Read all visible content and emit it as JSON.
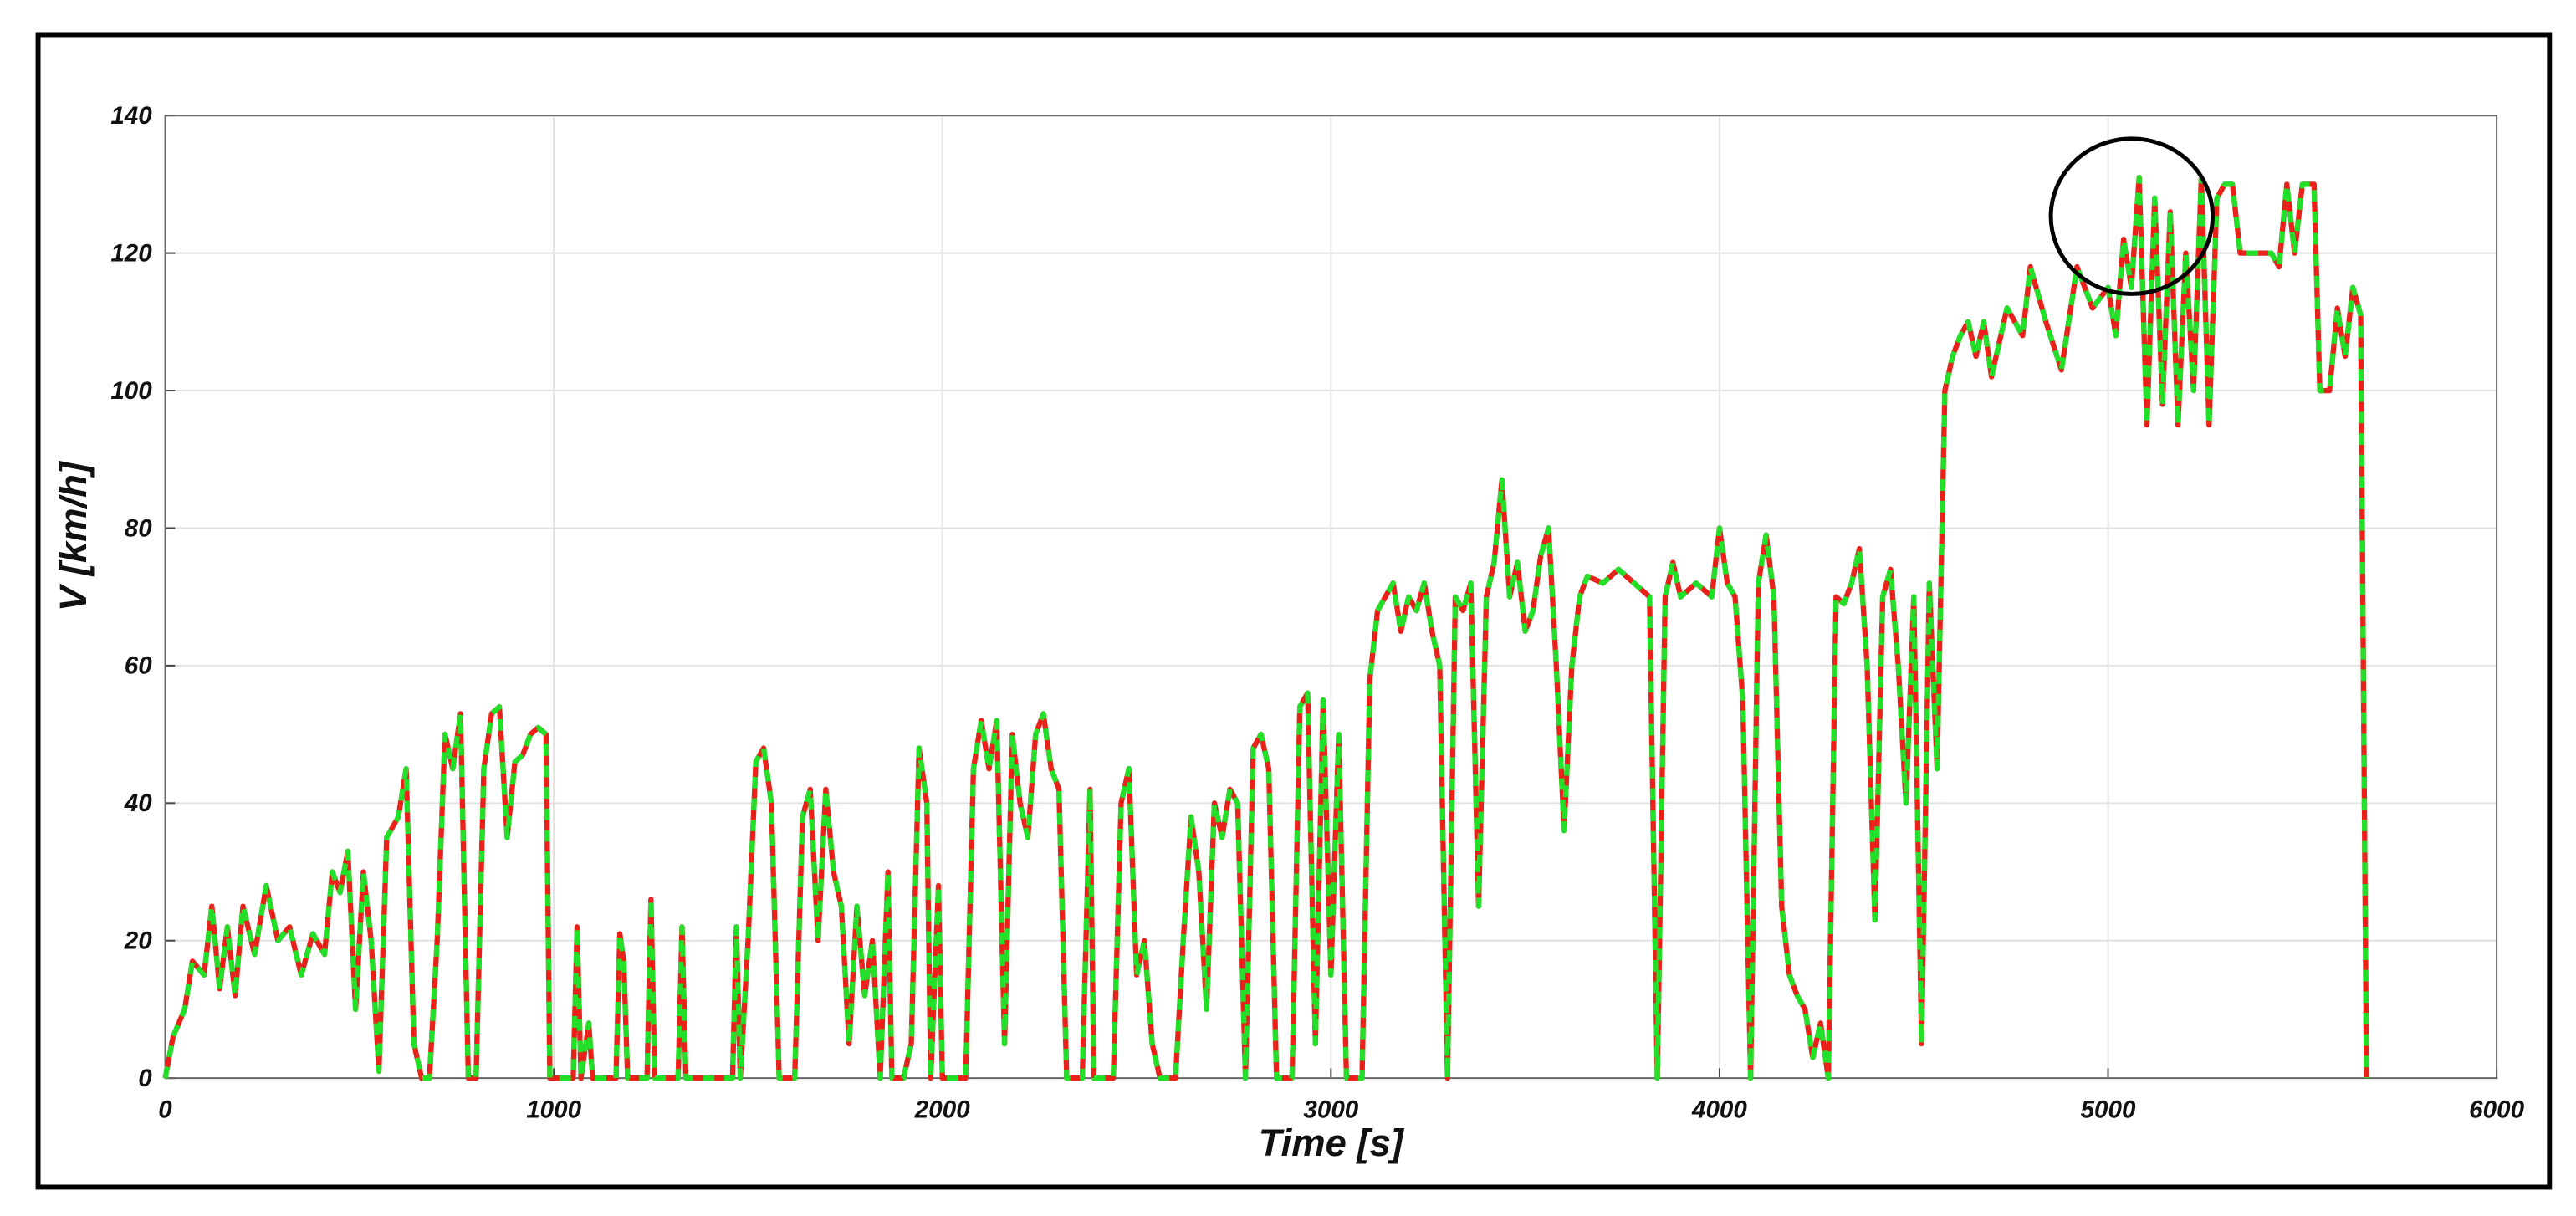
{
  "chart_data": {
    "type": "line",
    "xlabel": "Time [s]",
    "ylabel": "V [km/h]",
    "xlim": [
      0,
      6000
    ],
    "xticks": [
      0,
      1000,
      2000,
      3000,
      4000,
      5000,
      6000
    ],
    "ylim": [
      0,
      140
    ],
    "yticks": [
      0,
      20,
      40,
      60,
      80,
      100,
      120,
      140
    ],
    "grid": true,
    "x": [
      0,
      20,
      50,
      70,
      100,
      120,
      140,
      160,
      180,
      200,
      230,
      260,
      290,
      320,
      350,
      380,
      410,
      430,
      450,
      470,
      490,
      510,
      530,
      550,
      570,
      600,
      620,
      640,
      660,
      680,
      700,
      720,
      740,
      760,
      780,
      800,
      820,
      840,
      860,
      880,
      900,
      920,
      940,
      960,
      980,
      990,
      1050,
      1060,
      1070,
      1090,
      1100,
      1160,
      1170,
      1180,
      1190,
      1240,
      1250,
      1260,
      1320,
      1330,
      1340,
      1460,
      1470,
      1480,
      1500,
      1520,
      1540,
      1560,
      1580,
      1620,
      1640,
      1660,
      1680,
      1700,
      1720,
      1740,
      1760,
      1780,
      1800,
      1820,
      1840,
      1860,
      1870,
      1900,
      1920,
      1940,
      1960,
      1970,
      1990,
      2000,
      2060,
      2080,
      2100,
      2120,
      2140,
      2160,
      2180,
      2200,
      2220,
      2240,
      2260,
      2280,
      2300,
      2320,
      2360,
      2380,
      2390,
      2440,
      2460,
      2480,
      2500,
      2520,
      2540,
      2560,
      2600,
      2620,
      2640,
      2660,
      2680,
      2700,
      2720,
      2740,
      2760,
      2780,
      2800,
      2820,
      2840,
      2860,
      2900,
      2920,
      2940,
      2960,
      2980,
      3000,
      3020,
      3040,
      3080,
      3100,
      3120,
      3140,
      3160,
      3180,
      3200,
      3220,
      3240,
      3260,
      3280,
      3300,
      3320,
      3340,
      3360,
      3380,
      3400,
      3420,
      3440,
      3460,
      3480,
      3500,
      3520,
      3540,
      3560,
      3580,
      3600,
      3620,
      3640,
      3660,
      3700,
      3740,
      3780,
      3820,
      3840,
      3860,
      3880,
      3900,
      3940,
      3980,
      4000,
      4020,
      4040,
      4060,
      4080,
      4100,
      4120,
      4140,
      4160,
      4180,
      4200,
      4220,
      4240,
      4260,
      4280,
      4300,
      4320,
      4340,
      4360,
      4380,
      4400,
      4420,
      4440,
      4460,
      4480,
      4500,
      4520,
      4540,
      4560,
      4580,
      4600,
      4620,
      4640,
      4660,
      4680,
      4700,
      4740,
      4780,
      4800,
      4840,
      4880,
      4920,
      4960,
      5000,
      5020,
      5040,
      5060,
      5080,
      5100,
      5120,
      5140,
      5160,
      5180,
      5200,
      5220,
      5240,
      5260,
      5280,
      5300,
      5320,
      5340,
      5420,
      5440,
      5460,
      5480,
      5500,
      5530,
      5545,
      5570,
      5590,
      5610,
      5630,
      5650,
      5665
    ],
    "series": [
      {
        "color": "#e8221b",
        "values": [
          0,
          6,
          10,
          17,
          15,
          25,
          13,
          22,
          12,
          25,
          18,
          28,
          20,
          22,
          15,
          21,
          18,
          30,
          27,
          33,
          10,
          30,
          20,
          1,
          35,
          38,
          45,
          5,
          0,
          0,
          20,
          50,
          45,
          53,
          0,
          0,
          45,
          53,
          54,
          35,
          46,
          47,
          50,
          51,
          50,
          0,
          0,
          22,
          0,
          8,
          0,
          0,
          21,
          17,
          0,
          0,
          26,
          0,
          0,
          22,
          0,
          0,
          22,
          0,
          20,
          46,
          48,
          40,
          0,
          0,
          38,
          42,
          20,
          42,
          30,
          25,
          5,
          25,
          12,
          20,
          0,
          30,
          0,
          0,
          5,
          48,
          40,
          0,
          28,
          0,
          0,
          45,
          52,
          45,
          52,
          5,
          50,
          40,
          35,
          50,
          53,
          45,
          42,
          0,
          0,
          42,
          0,
          0,
          40,
          45,
          15,
          20,
          5,
          0,
          0,
          20,
          38,
          30,
          10,
          40,
          35,
          42,
          40,
          0,
          48,
          50,
          45,
          0,
          0,
          54,
          56,
          5,
          55,
          15,
          50,
          0,
          0,
          58,
          68,
          70,
          72,
          65,
          70,
          68,
          72,
          65,
          60,
          0,
          70,
          68,
          72,
          25,
          70,
          75,
          87,
          70,
          75,
          65,
          68,
          76,
          80,
          60,
          36,
          60,
          70,
          73,
          72,
          74,
          72,
          70,
          0,
          70,
          75,
          70,
          72,
          70,
          80,
          72,
          70,
          55,
          0,
          72,
          79,
          70,
          25,
          15,
          12,
          10,
          3,
          8,
          0,
          70,
          69,
          72,
          77,
          60,
          23,
          70,
          74,
          60,
          40,
          70,
          5,
          72,
          45,
          100,
          105,
          108,
          110,
          105,
          110,
          102,
          112,
          108,
          118,
          110,
          103,
          118,
          112,
          115,
          108,
          122,
          115,
          131,
          95,
          128,
          98,
          126,
          95,
          120,
          100,
          131,
          95,
          128,
          130,
          130,
          120,
          120,
          118,
          130,
          120,
          130,
          130,
          100,
          100,
          112,
          105,
          115,
          111,
          0
        ]
      },
      {
        "color": "#22e02a",
        "values": [
          0,
          6,
          10,
          17,
          15,
          25,
          13,
          22,
          12,
          25,
          18,
          28,
          20,
          22,
          15,
          21,
          18,
          30,
          27,
          33,
          10,
          30,
          20,
          1,
          35,
          38,
          45,
          5,
          0,
          0,
          20,
          50,
          45,
          53,
          0,
          0,
          45,
          53,
          54,
          35,
          46,
          47,
          50,
          51,
          50,
          0,
          0,
          22,
          0,
          8,
          0,
          0,
          21,
          17,
          0,
          0,
          26,
          0,
          0,
          22,
          0,
          0,
          22,
          0,
          20,
          46,
          48,
          40,
          0,
          0,
          38,
          42,
          20,
          42,
          30,
          25,
          5,
          25,
          12,
          20,
          0,
          30,
          0,
          0,
          5,
          48,
          40,
          0,
          28,
          0,
          0,
          45,
          52,
          45,
          52,
          5,
          50,
          40,
          35,
          50,
          53,
          45,
          42,
          0,
          0,
          42,
          0,
          0,
          40,
          45,
          15,
          20,
          5,
          0,
          0,
          20,
          38,
          30,
          10,
          40,
          35,
          42,
          40,
          0,
          48,
          50,
          45,
          0,
          0,
          54,
          56,
          5,
          55,
          15,
          50,
          0,
          0,
          58,
          68,
          70,
          72,
          65,
          70,
          68,
          72,
          65,
          60,
          0,
          70,
          68,
          72,
          25,
          70,
          75,
          87,
          70,
          75,
          65,
          68,
          76,
          80,
          60,
          36,
          60,
          70,
          73,
          72,
          74,
          72,
          70,
          0,
          70,
          75,
          70,
          72,
          70,
          80,
          72,
          70,
          55,
          0,
          72,
          79,
          70,
          25,
          15,
          12,
          10,
          3,
          8,
          0,
          70,
          69,
          72,
          77,
          60,
          23,
          70,
          74,
          60,
          40,
          70,
          5,
          72,
          45,
          100,
          105,
          108,
          110,
          105,
          110,
          102,
          112,
          108,
          118,
          110,
          103,
          118,
          112,
          115,
          108,
          122,
          115,
          131,
          95,
          128,
          98,
          126,
          95,
          120,
          100,
          131,
          95,
          128,
          130,
          130,
          120,
          120,
          118,
          130,
          120,
          130,
          130,
          100,
          100,
          112,
          105,
          115,
          111,
          0
        ]
      }
    ]
  }
}
